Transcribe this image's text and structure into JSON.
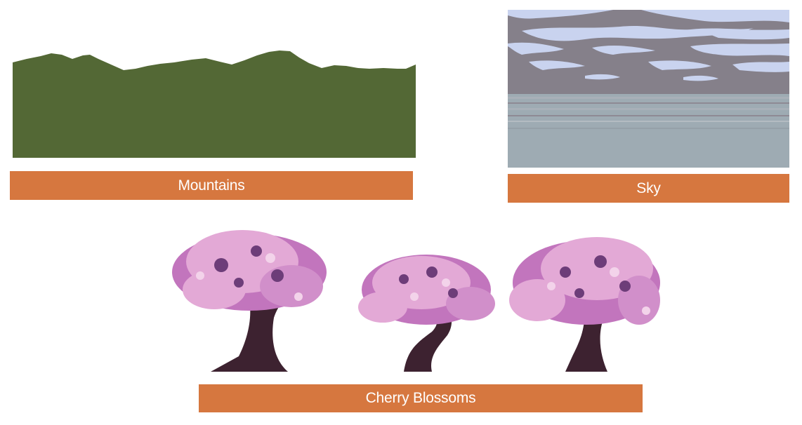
{
  "colors": {
    "label_bar": "#d6773f",
    "label_text": "#ffffff",
    "mountain_fill": "#536835",
    "sky_upper": "#85808a",
    "sky_cloud": "#c9d3ef",
    "sky_lower": "#9eabb3",
    "trunk": "#3d2230",
    "blossom_light": "#e3a9d6",
    "blossom_mid": "#c275bd",
    "blossom_dark": "#6d3d79"
  },
  "assets": [
    {
      "id": "mountains",
      "label": "Mountains"
    },
    {
      "id": "sky",
      "label": "Sky"
    },
    {
      "id": "cherry_blossoms",
      "label": "Cherry Blossoms"
    }
  ]
}
